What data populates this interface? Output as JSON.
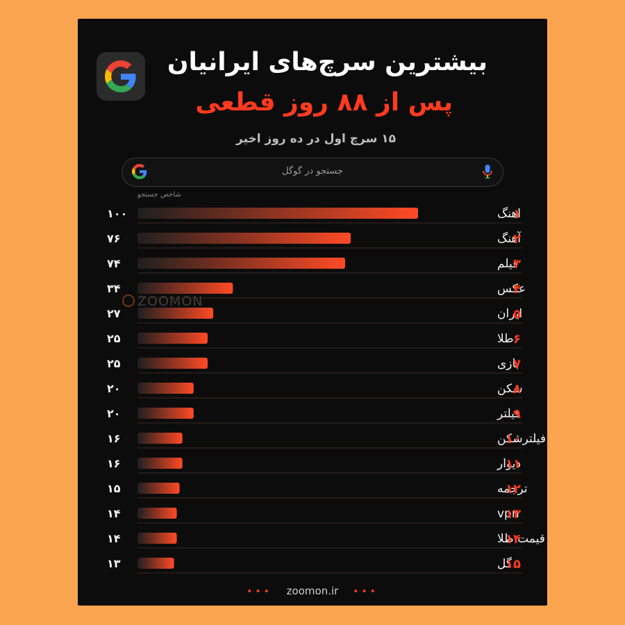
{
  "header": {
    "title_line1": "بیشترین سرچ‌های ایرانیان",
    "title_line2": "پس از ۸۸ روز قطعی",
    "subtitle": "۱۵ سرچ اول در ده روز اخیر"
  },
  "search": {
    "placeholder": "جستجو در گوگل"
  },
  "watermark": "ZOOMON",
  "footer": {
    "url": "zoomon.ir",
    "dots_left": "•••",
    "dots_right": "•••"
  },
  "colors": {
    "background": "#fba551",
    "card": "#0c0c0c",
    "accent": "#ff3b1f",
    "bar_start": "#1f1f1f",
    "bar_end": "#ff4a25",
    "row_line": "#3a2a22"
  },
  "icons": {
    "logo": "google-g-icon",
    "search_logo": "google-g-icon",
    "mic": "microphone-icon"
  },
  "chart_data": {
    "type": "bar",
    "orientation": "horizontal",
    "axis_label": "شاخص جستجو",
    "xlim": [
      0,
      100
    ],
    "ranks": [
      "۱",
      "۲",
      "۳",
      "۴",
      "۵",
      "۶",
      "۷",
      "۸",
      "۹",
      "۱۰",
      "۱۱",
      "۱۲",
      "۱۳",
      "۱۴",
      "۱۵"
    ],
    "categories": [
      "اهنگ",
      "آهنگ",
      "فیلم",
      "عکس",
      "ایران",
      "طلا",
      "بازی",
      "شکن",
      "فیلتر",
      "فیلترشکن",
      "دیوار",
      "ترجمه",
      "vpn",
      "قیمت طلا",
      "گل"
    ],
    "values": [
      100,
      76,
      74,
      34,
      27,
      25,
      25,
      20,
      20,
      16,
      16,
      15,
      14,
      14,
      13
    ],
    "value_labels": [
      "۱۰۰",
      "۷۶",
      "۷۴",
      "۳۴",
      "۲۷",
      "۲۵",
      "۲۵",
      "۲۰",
      "۲۰",
      "۱۶",
      "۱۶",
      "۱۵",
      "۱۴",
      "۱۴",
      "۱۳"
    ]
  }
}
